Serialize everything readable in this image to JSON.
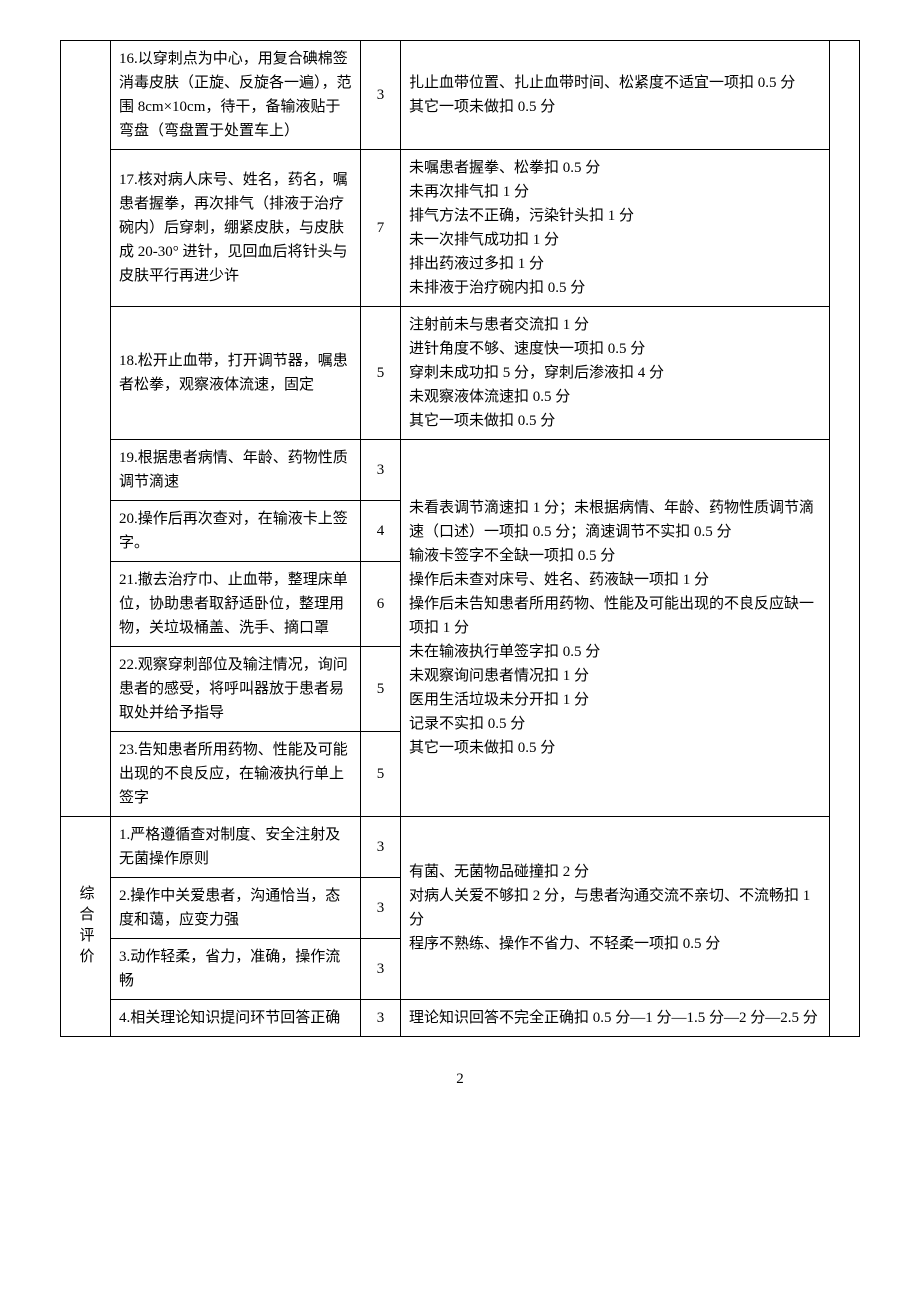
{
  "categoryLabel": "综合评价",
  "rows": [
    {
      "item": "16.以穿刺点为中心，用复合碘棉签消毒皮肤（正旋、反旋各一遍），范围 8cm×10cm，待干，备输液贴于弯盘（弯盘置于处置车上）",
      "score": "3",
      "criteria": "扎止血带位置、扎止血带时间、松紧度不适宜一项扣 0.5 分\n其它一项未做扣 0.5 分"
    },
    {
      "item": "17.核对病人床号、姓名，药名，嘱患者握拳，再次排气（排液于治疗碗内）后穿刺，绷紧皮肤，与皮肤成 20-30° 进针，见回血后将针头与皮肤平行再进少许",
      "score": "7",
      "criteria": "未嘱患者握拳、松拳扣 0.5 分\n未再次排气扣 1 分\n排气方法不正确，污染针头扣 1 分\n未一次排气成功扣 1 分\n排出药液过多扣 1 分\n未排液于治疗碗内扣 0.5 分"
    },
    {
      "item": "18.松开止血带，打开调节器，嘱患者松拳，观察液体流速，固定",
      "score": "5",
      "criteria": "注射前未与患者交流扣 1 分\n进针角度不够、速度快一项扣 0.5 分\n穿刺未成功扣 5 分，穿刺后渗液扣 4 分\n未观察液体流速扣 0.5 分\n其它一项未做扣 0.5 分"
    },
    {
      "item": "19.根据患者病情、年龄、药物性质调节滴速",
      "score": "3"
    },
    {
      "item": "20.操作后再次查对，在输液卡上签字。",
      "score": "4"
    },
    {
      "item": "21.撤去治疗巾、止血带，整理床单位，协助患者取舒适卧位，整理用物，关垃圾桶盖、洗手、摘口罩",
      "score": "6"
    },
    {
      "item": "22.观察穿刺部位及输注情况，询问患者的感受，将呼叫器放于患者易取处并给予指导",
      "score": "5"
    },
    {
      "item": "23.告知患者所用药物、性能及可能出现的不良反应，在输液执行单上签字",
      "score": "5"
    }
  ],
  "mergedCriteria": "未看表调节滴速扣 1 分；未根据病情、年龄、药物性质调节滴速（口述）一项扣 0.5 分；滴速调节不实扣 0.5 分\n输液卡签字不全缺一项扣 0.5 分\n操作后未查对床号、姓名、药液缺一项扣 1 分\n操作后未告知患者所用药物、性能及可能出现的不良反应缺一项扣 1 分\n未在输液执行单签字扣 0.5 分\n未观察询问患者情况扣 1 分\n医用生活垃圾未分开扣 1 分\n记录不实扣 0.5 分\n其它一项未做扣 0.5 分",
  "evalRows": [
    {
      "item": "1.严格遵循查对制度、安全注射及无菌操作原则",
      "score": "3"
    },
    {
      "item": "2.操作中关爱患者，沟通恰当，态度和蔼，应变力强",
      "score": "3"
    },
    {
      "item": "3.动作轻柔，省力，准确，操作流畅",
      "score": "3"
    },
    {
      "item": "4.相关理论知识提问环节回答正确",
      "score": "3",
      "criteria": "理论知识回答不完全正确扣 0.5 分—1 分—1.5 分—2 分—2.5 分"
    }
  ],
  "evalMergedCriteria": "有菌、无菌物品碰撞扣 2 分\n对病人关爱不够扣 2 分，与患者沟通交流不亲切、不流畅扣 1 分\n程序不熟练、操作不省力、不轻柔一项扣 0.5 分",
  "pageNumber": "2"
}
